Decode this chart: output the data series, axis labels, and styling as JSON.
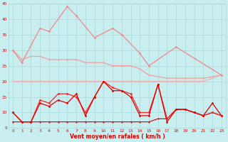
{
  "x": [
    0,
    1,
    2,
    3,
    4,
    5,
    6,
    7,
    8,
    9,
    10,
    11,
    12,
    13,
    14,
    15,
    16,
    17,
    18,
    19,
    20,
    21,
    22,
    23
  ],
  "series": [
    {
      "y": [
        30,
        26,
        37,
        36,
        44,
        41,
        34,
        37,
        35,
        29,
        25,
        31,
        22
      ],
      "xi": [
        0,
        1,
        3,
        4,
        6,
        7,
        9,
        11,
        12,
        14,
        15,
        18,
        23
      ],
      "color": "#f08888",
      "lw": 0.9,
      "marker": "o",
      "ms": 2.0,
      "zorder": 3
    },
    {
      "y": [
        30,
        27,
        28,
        28,
        27,
        27,
        27,
        27,
        26,
        26,
        26,
        25,
        25,
        25,
        24,
        22,
        21,
        21,
        21,
        22
      ],
      "xi": [
        0,
        1,
        2,
        3,
        4,
        5,
        6,
        7,
        8,
        9,
        10,
        11,
        12,
        13,
        14,
        15,
        17,
        19,
        21,
        23
      ],
      "color": "#f0a0a0",
      "lw": 0.9,
      "marker": "o",
      "ms": 1.5,
      "zorder": 2
    },
    {
      "y": [
        20,
        20,
        20,
        20,
        20,
        20,
        20,
        20,
        20,
        20,
        20,
        20,
        20,
        20,
        20,
        20,
        20,
        20,
        20,
        20,
        20,
        20,
        21,
        22
      ],
      "xi": [
        0,
        1,
        2,
        3,
        4,
        5,
        6,
        7,
        8,
        9,
        10,
        11,
        12,
        13,
        14,
        15,
        16,
        17,
        18,
        19,
        20,
        21,
        22,
        23
      ],
      "color": "#f0b0b0",
      "lw": 0.9,
      "marker": null,
      "ms": 0,
      "zorder": 2
    },
    {
      "y": [
        10,
        7,
        7,
        14,
        13,
        16,
        16,
        15,
        10,
        15,
        20,
        18,
        17,
        16,
        10,
        10,
        19,
        8,
        11,
        11,
        10,
        9,
        10,
        9
      ],
      "xi": [
        0,
        1,
        2,
        3,
        4,
        5,
        6,
        7,
        8,
        9,
        10,
        11,
        12,
        13,
        14,
        15,
        16,
        17,
        18,
        19,
        20,
        21,
        22,
        23
      ],
      "color": "#ff2222",
      "lw": 0.9,
      "marker": "o",
      "ms": 2.0,
      "zorder": 4
    },
    {
      "y": [
        10,
        7,
        7,
        13,
        12,
        14,
        13,
        16,
        9,
        15,
        20,
        17,
        17,
        15,
        9,
        9,
        19,
        7,
        11,
        11,
        10,
        9,
        13,
        9
      ],
      "xi": [
        0,
        1,
        2,
        3,
        4,
        5,
        6,
        7,
        8,
        9,
        10,
        11,
        12,
        13,
        14,
        15,
        16,
        17,
        18,
        19,
        20,
        21,
        22,
        23
      ],
      "color": "#dd0000",
      "lw": 0.9,
      "marker": "o",
      "ms": 2.0,
      "zorder": 5
    },
    {
      "y": [
        7,
        7,
        7,
        7,
        7,
        7,
        7,
        7,
        7,
        7,
        7,
        7,
        7,
        7,
        7,
        7,
        8,
        8,
        11,
        11,
        10,
        9,
        10,
        9
      ],
      "xi": [
        0,
        1,
        2,
        3,
        4,
        5,
        6,
        7,
        8,
        9,
        10,
        11,
        12,
        13,
        14,
        15,
        16,
        17,
        18,
        19,
        20,
        21,
        22,
        23
      ],
      "color": "#cc0000",
      "lw": 0.8,
      "marker": "o",
      "ms": 1.5,
      "zorder": 3
    }
  ],
  "color_red": "#dd0000",
  "bg_color": "#c8eef0",
  "grid_color": "#a8d8da",
  "xlabel": "Vent moyen/en rafales ( km/h )",
  "ylim": [
    5,
    45
  ],
  "yticks": [
    5,
    10,
    15,
    20,
    25,
    30,
    35,
    40,
    45
  ],
  "xticks": [
    0,
    1,
    2,
    3,
    4,
    5,
    6,
    7,
    8,
    9,
    10,
    11,
    12,
    13,
    14,
    15,
    16,
    17,
    18,
    19,
    20,
    21,
    22,
    23
  ]
}
